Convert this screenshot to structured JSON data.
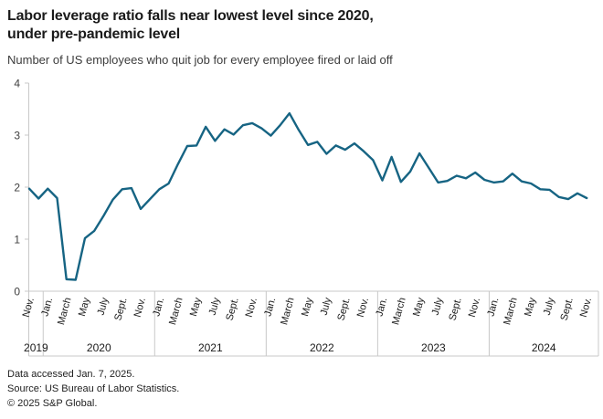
{
  "header": {
    "title_line1": "Labor leverage ratio falls near lowest level since 2020,",
    "title_line2": "under pre-pandemic level",
    "subtitle": "Number of US employees who quit job for every employee fired or laid off"
  },
  "chart_data": {
    "type": "line",
    "title": "Labor leverage ratio falls near lowest level since 2020, under pre-pandemic level",
    "subtitle": "Number of US employees who quit job for every employee fired or laid off",
    "xlabel": "",
    "ylabel": "",
    "ylim": [
      0,
      4
    ],
    "yticks": [
      0,
      1,
      2,
      3,
      4
    ],
    "grid": "off",
    "legend": "none",
    "line_color": "#166483",
    "axis_color": "#c8c8c8",
    "tick_label_color": "#3f3f3f",
    "x_year_labels": [
      "2019",
      "2020",
      "2021",
      "2022",
      "2023",
      "2024"
    ],
    "month_display": {
      "Nov": "Nov.",
      "Jan": "Jan.",
      "Mar": "March",
      "May": "May",
      "Jul": "July",
      "Sep": "Sept."
    },
    "x_tick_note": "every second month labeled, years boxed beneath",
    "months": [
      "Nov 2019",
      "Dec 2019",
      "Jan 2020",
      "Feb 2020",
      "Mar 2020",
      "Apr 2020",
      "May 2020",
      "Jun 2020",
      "Jul 2020",
      "Aug 2020",
      "Sep 2020",
      "Oct 2020",
      "Nov 2020",
      "Dec 2020",
      "Jan 2021",
      "Feb 2021",
      "Mar 2021",
      "Apr 2021",
      "May 2021",
      "Jun 2021",
      "Jul 2021",
      "Aug 2021",
      "Sep 2021",
      "Oct 2021",
      "Nov 2021",
      "Dec 2021",
      "Jan 2022",
      "Feb 2022",
      "Mar 2022",
      "Apr 2022",
      "May 2022",
      "Jun 2022",
      "Jul 2022",
      "Aug 2022",
      "Sep 2022",
      "Oct 2022",
      "Nov 2022",
      "Dec 2022",
      "Jan 2023",
      "Feb 2023",
      "Mar 2023",
      "Apr 2023",
      "May 2023",
      "Jun 2023",
      "Jul 2023",
      "Aug 2023",
      "Sep 2023",
      "Oct 2023",
      "Nov 2023",
      "Dec 2023",
      "Jan 2024",
      "Feb 2024",
      "Mar 2024",
      "Apr 2024",
      "May 2024",
      "Jun 2024",
      "Jul 2024",
      "Aug 2024",
      "Sep 2024",
      "Oct 2024",
      "Nov 2024"
    ],
    "values": [
      1.97,
      1.78,
      1.97,
      1.79,
      0.23,
      0.22,
      1.02,
      1.16,
      1.45,
      1.76,
      1.96,
      1.98,
      1.58,
      1.77,
      1.96,
      2.07,
      2.44,
      2.79,
      2.8,
      3.16,
      2.89,
      3.11,
      3.01,
      3.19,
      3.23,
      3.13,
      2.99,
      3.19,
      3.42,
      3.1,
      2.81,
      2.87,
      2.64,
      2.8,
      2.72,
      2.84,
      2.69,
      2.52,
      2.13,
      2.58,
      2.1,
      2.3,
      2.65,
      2.37,
      2.09,
      2.12,
      2.22,
      2.17,
      2.28,
      2.14,
      2.09,
      2.11,
      2.26,
      2.11,
      2.07,
      1.96,
      1.95,
      1.81,
      1.77,
      1.88,
      1.79
    ]
  },
  "footer": {
    "accessed": "Data accessed Jan. 7, 2025.",
    "source": "Source: US Bureau of Labor Statistics.",
    "copyright": "© 2025 S&P Global."
  }
}
